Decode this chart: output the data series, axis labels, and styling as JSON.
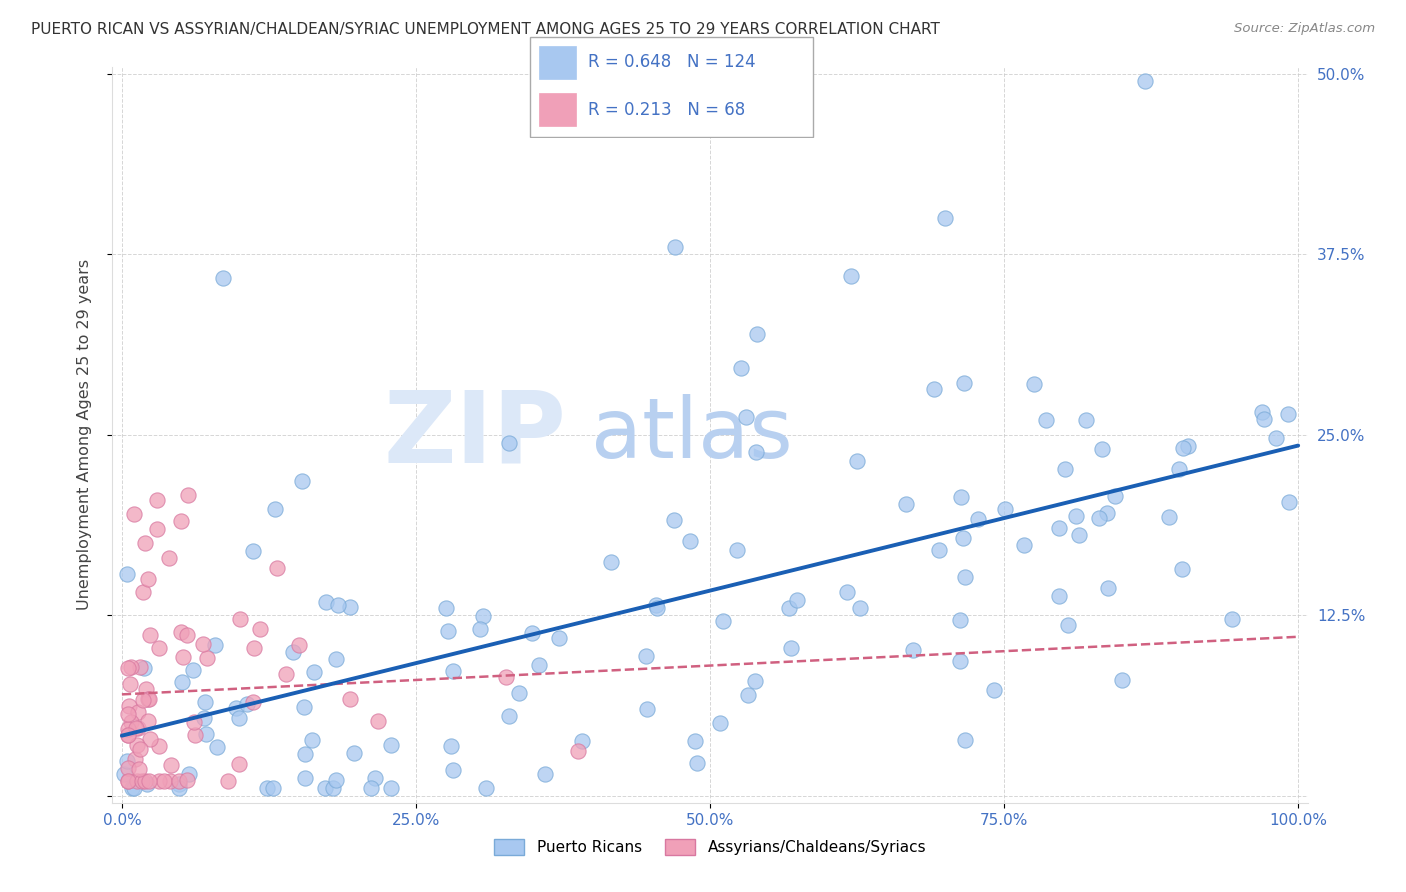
{
  "title": "PUERTO RICAN VS ASSYRIAN/CHALDEAN/SYRIAC UNEMPLOYMENT AMONG AGES 25 TO 29 YEARS CORRELATION CHART",
  "source": "Source: ZipAtlas.com",
  "ylabel": "Unemployment Among Ages 25 to 29 years",
  "xlim": [
    0.0,
    1.0
  ],
  "ylim": [
    0.0,
    0.5
  ],
  "xticks": [
    0.0,
    0.25,
    0.5,
    0.75,
    1.0
  ],
  "xtick_labels": [
    "0.0%",
    "25.0%",
    "50.0%",
    "75.0%",
    "100.0%"
  ],
  "yticks": [
    0.0,
    0.125,
    0.25,
    0.375,
    0.5
  ],
  "ytick_labels_right": [
    "",
    "12.5%",
    "25.0%",
    "37.5%",
    "50.0%"
  ],
  "blue_R": 0.648,
  "blue_N": 124,
  "pink_R": 0.213,
  "pink_N": 68,
  "blue_color": "#a8c8f0",
  "blue_edge_color": "#7aaad8",
  "pink_color": "#f0a0b8",
  "pink_edge_color": "#d878a0",
  "blue_line_color": "#1a5fb4",
  "pink_line_color": "#d06080",
  "label_color": "#4472c4",
  "watermark_zip_color": "#dce8f8",
  "watermark_atlas_color": "#b8d0f0",
  "legend_blue_R": "0.648",
  "legend_blue_N": "124",
  "legend_pink_R": "0.213",
  "legend_pink_N": "68",
  "bottom_label_blue": "Puerto Ricans",
  "bottom_label_pink": "Assyrians/Chaldeans/Syriacs"
}
